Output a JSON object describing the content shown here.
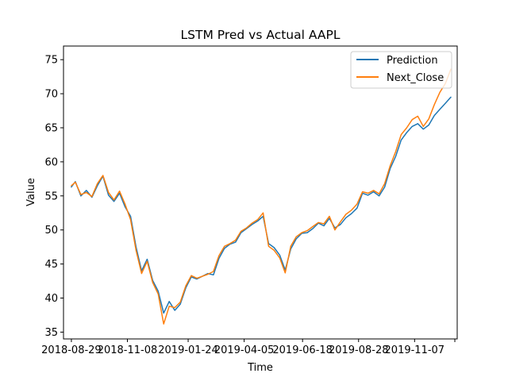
{
  "chart_data": {
    "type": "line",
    "title": "LSTM Pred vs Actual AAPL",
    "xlabel": "Time",
    "ylabel": "Value",
    "ylim": [
      34,
      77
    ],
    "yticks": [
      35,
      40,
      45,
      50,
      55,
      60,
      65,
      70,
      75
    ],
    "xlim": [
      "2018-08-19",
      "2019-12-31"
    ],
    "xticks": [
      "2018-08-29",
      "2018-11-08",
      "2019-01-24",
      "2019-04-05",
      "2019-06-18",
      "2019-08-28",
      "2019-11-07"
    ],
    "grid": false,
    "legend": "top-right",
    "x": [
      "2018-08-29",
      "2018-09-03",
      "2018-09-10",
      "2018-09-17",
      "2018-09-24",
      "2018-10-01",
      "2018-10-08",
      "2018-10-15",
      "2018-10-22",
      "2018-10-29",
      "2018-11-05",
      "2018-11-12",
      "2018-11-19",
      "2018-11-26",
      "2018-12-03",
      "2018-12-10",
      "2018-12-17",
      "2018-12-24",
      "2018-12-31",
      "2019-01-07",
      "2019-01-14",
      "2019-01-21",
      "2019-01-28",
      "2019-02-04",
      "2019-02-11",
      "2019-02-18",
      "2019-02-25",
      "2019-03-04",
      "2019-03-11",
      "2019-03-18",
      "2019-03-25",
      "2019-04-01",
      "2019-04-08",
      "2019-04-15",
      "2019-04-22",
      "2019-04-29",
      "2019-05-06",
      "2019-05-13",
      "2019-05-20",
      "2019-05-27",
      "2019-06-03",
      "2019-06-10",
      "2019-06-17",
      "2019-06-24",
      "2019-07-01",
      "2019-07-08",
      "2019-07-15",
      "2019-07-22",
      "2019-07-29",
      "2019-08-05",
      "2019-08-12",
      "2019-08-19",
      "2019-08-26",
      "2019-09-02",
      "2019-09-09",
      "2019-09-16",
      "2019-09-23",
      "2019-09-30",
      "2019-10-07",
      "2019-10-14",
      "2019-10-21",
      "2019-10-28",
      "2019-11-04",
      "2019-11-11",
      "2019-11-18",
      "2019-11-25",
      "2019-12-02",
      "2019-12-09",
      "2019-12-16",
      "2019-12-23"
    ],
    "series": [
      {
        "name": "Prediction",
        "color": "#1f77b4",
        "values": [
          56.3,
          57.1,
          55.0,
          55.8,
          54.8,
          56.5,
          57.9,
          55.1,
          54.2,
          55.4,
          53.4,
          52.0,
          47.5,
          44.0,
          45.7,
          42.6,
          41.0,
          37.8,
          39.5,
          38.2,
          39.1,
          41.5,
          43.1,
          42.8,
          43.2,
          43.6,
          43.4,
          45.8,
          47.3,
          47.9,
          48.2,
          49.6,
          50.2,
          50.8,
          51.3,
          52.0,
          48.0,
          47.4,
          46.3,
          44.1,
          47.2,
          48.7,
          49.5,
          49.6,
          50.2,
          51.0,
          50.6,
          51.7,
          50.3,
          50.8,
          51.8,
          52.4,
          53.2,
          55.4,
          55.1,
          55.6,
          55.0,
          56.3,
          59.0,
          60.8,
          63.2,
          64.3,
          65.2,
          65.6,
          64.8,
          65.4,
          66.8,
          67.7,
          68.6,
          69.5
        ]
      },
      {
        "name": "Next_Close",
        "color": "#ff7f0e",
        "values": [
          56.5,
          57.0,
          55.2,
          55.5,
          54.9,
          56.8,
          58.0,
          55.5,
          54.4,
          55.7,
          53.8,
          51.5,
          47.0,
          43.6,
          45.4,
          42.3,
          40.6,
          36.2,
          38.8,
          38.6,
          39.4,
          41.8,
          43.3,
          42.9,
          43.2,
          43.5,
          43.9,
          46.2,
          47.6,
          48.0,
          48.5,
          49.8,
          50.3,
          51.0,
          51.5,
          52.5,
          47.6,
          47.0,
          45.9,
          43.7,
          47.6,
          49.0,
          49.6,
          49.9,
          50.5,
          51.1,
          50.9,
          52.0,
          50.0,
          51.2,
          52.3,
          52.9,
          53.8,
          55.6,
          55.4,
          55.8,
          55.3,
          56.8,
          59.4,
          61.5,
          64.0,
          65.0,
          66.2,
          66.7,
          65.2,
          66.3,
          68.4,
          70.2,
          71.5,
          73.6
        ]
      }
    ]
  }
}
